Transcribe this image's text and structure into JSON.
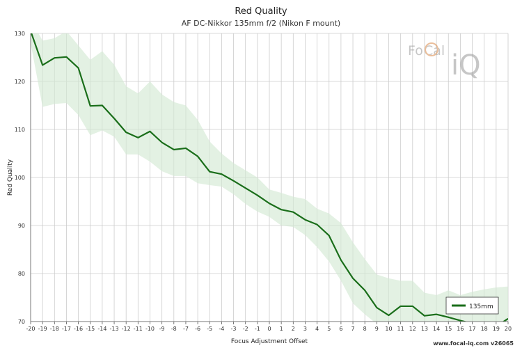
{
  "chart_data": {
    "type": "line",
    "title": "Red Quality",
    "subtitle": "AF DC-Nikkor 135mm f/2 (Nikon F mount)",
    "xlabel": "Focus Adjustment Offset",
    "ylabel": "Red Quality",
    "xlim": [
      -20,
      20
    ],
    "ylim": [
      70,
      130
    ],
    "x_ticks": [
      -20,
      -19,
      -18,
      -17,
      -16,
      -15,
      -14,
      -13,
      -12,
      -11,
      -10,
      -9,
      -8,
      -7,
      -6,
      -5,
      -4,
      -3,
      -2,
      -1,
      0,
      1,
      2,
      3,
      4,
      5,
      6,
      7,
      8,
      9,
      10,
      11,
      12,
      13,
      14,
      15,
      16,
      17,
      18,
      19,
      20
    ],
    "y_ticks": [
      70,
      80,
      90,
      100,
      110,
      120,
      130
    ],
    "grid": true,
    "legend_position": "bottom-right",
    "series": [
      {
        "name": "135mm",
        "color": "#1a6e1a",
        "x": [
          -20,
          -19,
          -18,
          -17,
          -16,
          -15,
          -14,
          -13,
          -12,
          -11,
          -10,
          -9,
          -8,
          -7,
          -6,
          -5,
          -4,
          -3,
          -2,
          -1,
          0,
          1,
          2,
          3,
          4,
          5,
          6,
          7,
          8,
          9,
          10,
          11,
          12,
          13,
          14,
          15,
          16,
          17,
          18,
          19,
          20
        ],
        "y": [
          130.5,
          123.4,
          124.9,
          125.1,
          122.8,
          114.9,
          115.0,
          112.3,
          109.4,
          108.3,
          109.6,
          107.3,
          105.8,
          106.1,
          104.4,
          101.2,
          100.7,
          99.3,
          97.8,
          96.3,
          94.6,
          93.3,
          92.8,
          91.2,
          90.2,
          87.9,
          82.8,
          79.0,
          76.5,
          72.9,
          71.3,
          73.2,
          73.2,
          71.2,
          71.5,
          70.9,
          70.2,
          69.6,
          69.2,
          69.0,
          70.6
        ],
        "band_upper": [
          133,
          128.5,
          129,
          130.5,
          127.5,
          124.5,
          126.3,
          123.5,
          119,
          117.5,
          120,
          117.3,
          115.7,
          115,
          112,
          107.5,
          105,
          103,
          101.5,
          100,
          97.5,
          96.8,
          96,
          95.5,
          93.5,
          92.5,
          90.5,
          86.5,
          83,
          79.8,
          79,
          78.5,
          78.5,
          76,
          75.5,
          76.5,
          75.5,
          76.2,
          76.7,
          77.1,
          77.3
        ],
        "band_lower": [
          128,
          114.7,
          115.3,
          115.5,
          113,
          108.8,
          109.8,
          108.5,
          104.8,
          104.8,
          103.3,
          101.3,
          100.3,
          100.3,
          98.8,
          98.4,
          98.1,
          96.5,
          94.5,
          92.9,
          91.8,
          90,
          89.7,
          88,
          85.5,
          82.5,
          78.5,
          73.8,
          71.5,
          69.5,
          68.5,
          69,
          69,
          68.5,
          68.5,
          68,
          68,
          67.8,
          67.6,
          67.5,
          67.5
        ]
      }
    ]
  },
  "watermark": {
    "text_left": "Fo",
    "text_mid": "Cal",
    "text_right": "iQ"
  },
  "footer": {
    "text": "www.focal-iq.com  v26065"
  }
}
